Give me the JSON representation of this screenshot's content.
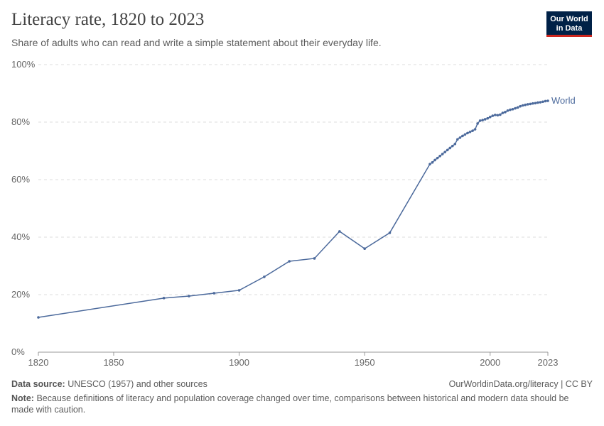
{
  "chart_data": {
    "type": "line",
    "title": "Literacy rate, 1820 to 2023",
    "subtitle": "Share of adults who can read and write a simple statement about their everyday life.",
    "logo": [
      "Our World",
      "in Data"
    ],
    "source_label": "Data source:",
    "source_text": "UNESCO (1957) and other sources",
    "url": "OurWorldinData.org/literacy | CC BY",
    "note_label": "Note:",
    "note_text": "Because definitions of literacy and population coverage changed over time, comparisons between historical and modern data should be made with caution.",
    "x": [
      1820,
      1870,
      1880,
      1890,
      1900,
      1910,
      1920,
      1930,
      1940,
      1950,
      1960,
      1976,
      1977,
      1978,
      1979,
      1980,
      1981,
      1982,
      1983,
      1984,
      1985,
      1986,
      1987,
      1988,
      1989,
      1990,
      1991,
      1992,
      1993,
      1994,
      1995,
      1996,
      1997,
      1998,
      1999,
      2000,
      2001,
      2002,
      2003,
      2004,
      2005,
      2006,
      2007,
      2008,
      2009,
      2010,
      2011,
      2012,
      2013,
      2014,
      2015,
      2016,
      2017,
      2018,
      2019,
      2020,
      2021,
      2022,
      2023
    ],
    "series": [
      {
        "name": "World",
        "color": "#4c6a9c",
        "values": [
          12.1,
          18.8,
          19.5,
          20.5,
          21.5,
          26.2,
          31.6,
          32.6,
          42.0,
          36.0,
          41.5,
          65.4,
          66.0,
          66.8,
          67.5,
          68.2,
          68.9,
          69.6,
          70.3,
          71.0,
          71.7,
          72.4,
          74.0,
          74.6,
          75.2,
          75.7,
          76.2,
          76.6,
          77.0,
          77.5,
          79.5,
          80.5,
          80.7,
          81.0,
          81.3,
          81.8,
          82.2,
          82.5,
          82.4,
          82.6,
          83.2,
          83.5,
          84.0,
          84.3,
          84.5,
          84.8,
          85.1,
          85.5,
          85.8,
          86.0,
          86.2,
          86.3,
          86.5,
          86.6,
          86.8,
          86.9,
          87.1,
          87.3,
          87.4
        ]
      }
    ],
    "xlim": [
      1820,
      2023
    ],
    "xticks": [
      1820,
      1850,
      1900,
      1950,
      2000,
      2023
    ],
    "ylim": [
      0,
      100
    ],
    "yticks": [
      {
        "value": 0,
        "label": "0%"
      },
      {
        "value": 20,
        "label": "20%"
      },
      {
        "value": 40,
        "label": "40%"
      },
      {
        "value": 60,
        "label": "60%"
      },
      {
        "value": 80,
        "label": "80%"
      },
      {
        "value": 100,
        "label": "100%"
      }
    ],
    "grid": true
  }
}
